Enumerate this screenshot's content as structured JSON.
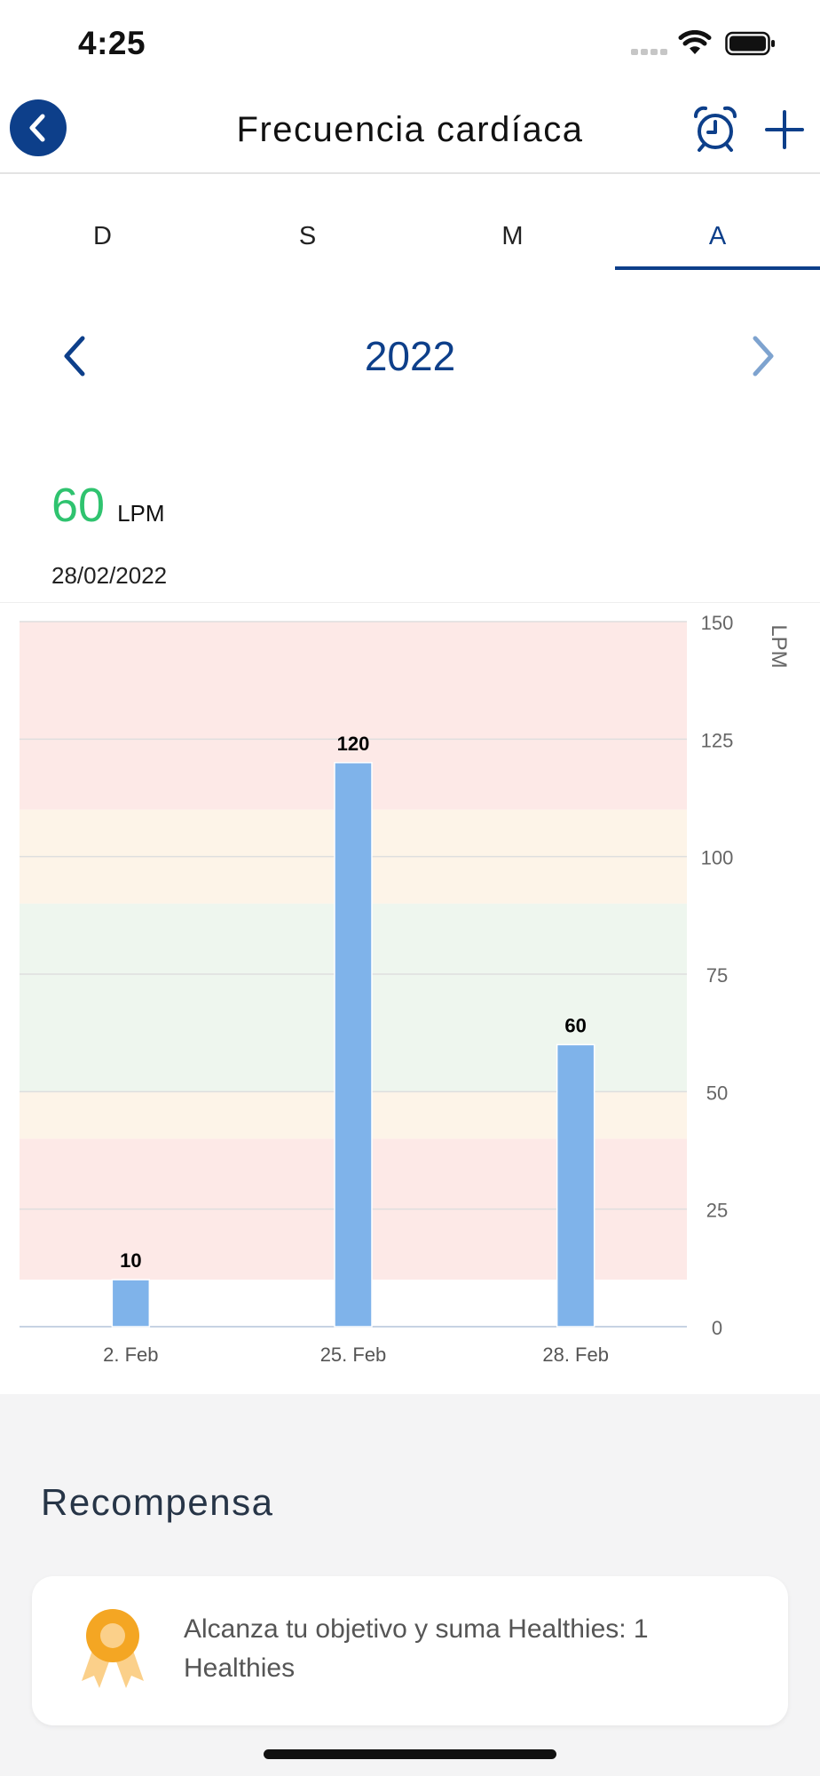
{
  "status_bar": {
    "time": "4:25"
  },
  "header": {
    "title": "Frecuencia cardíaca"
  },
  "tabs": [
    {
      "label": "D",
      "active": false
    },
    {
      "label": "S",
      "active": false
    },
    {
      "label": "M",
      "active": false
    },
    {
      "label": "A",
      "active": true
    }
  ],
  "period": {
    "label": "2022"
  },
  "reading": {
    "value": "60",
    "unit": "LPM",
    "date": "28/02/2022"
  },
  "chart_data": {
    "type": "bar",
    "categories": [
      "2. Feb",
      "25. Feb",
      "28. Feb"
    ],
    "values": [
      10,
      120,
      60
    ],
    "data_labels": [
      "10",
      "120",
      "60"
    ],
    "ylabel": "LPM",
    "ylim": [
      0,
      150
    ],
    "yticks": [
      0,
      25,
      50,
      75,
      100,
      125,
      150
    ],
    "y_axis_side": "right",
    "grid": true,
    "bar_color": "#7fb3ea",
    "zones": [
      {
        "from": 10,
        "to": 40,
        "color": "#fde9e7"
      },
      {
        "from": 40,
        "to": 50,
        "color": "#fdf4e8"
      },
      {
        "from": 50,
        "to": 90,
        "color": "#eef6ee"
      },
      {
        "from": 90,
        "to": 110,
        "color": "#fdf4e8"
      },
      {
        "from": 110,
        "to": 150,
        "color": "#fde9e7"
      }
    ]
  },
  "reward": {
    "title": "Recompensa",
    "text": "Alcanza tu objetivo y suma Healthies: 1 Healthies"
  },
  "colors": {
    "brand": "#0d3f8a",
    "value_green": "#2fc36f"
  },
  "icons": [
    "chevron-left-icon",
    "alarm-clock-icon",
    "plus-icon",
    "chevron-right-icon",
    "medal-icon",
    "wifi-icon",
    "battery-icon"
  ]
}
